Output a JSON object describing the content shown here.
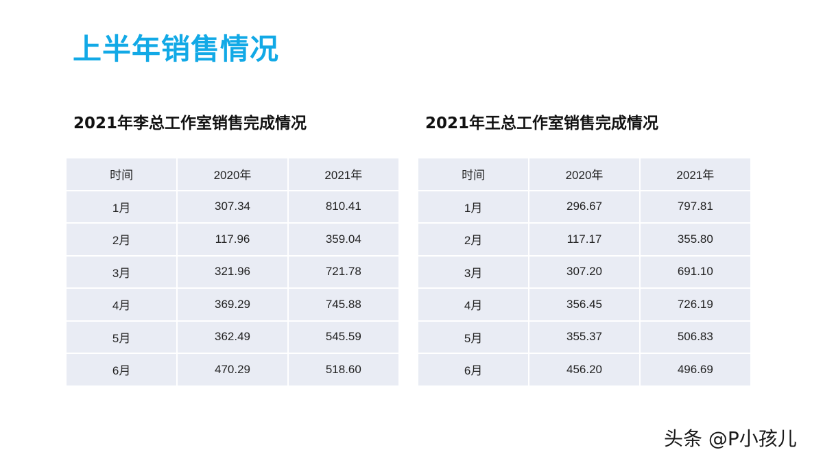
{
  "page": {
    "title": "上半年销售情况"
  },
  "tables": [
    {
      "title": "2021年李总工作室销售完成情况",
      "headers": [
        "时间",
        "2020年",
        "2021年"
      ],
      "rows": [
        [
          "1月",
          "307.34",
          "810.41"
        ],
        [
          "2月",
          "117.96",
          "359.04"
        ],
        [
          "3月",
          "321.96",
          "721.78"
        ],
        [
          "4月",
          "369.29",
          "745.88"
        ],
        [
          "5月",
          "362.49",
          "545.59"
        ],
        [
          "6月",
          "470.29",
          "518.60"
        ]
      ]
    },
    {
      "title": "2021年王总工作室销售完成情况",
      "headers": [
        "时间",
        "2020年",
        "2021年"
      ],
      "rows": [
        [
          "1月",
          "296.67",
          "797.81"
        ],
        [
          "2月",
          "117.17",
          "355.80"
        ],
        [
          "3月",
          "307.20",
          "691.10"
        ],
        [
          "4月",
          "356.45",
          "726.19"
        ],
        [
          "5月",
          "355.37",
          "506.83"
        ],
        [
          "6月",
          "456.20",
          "496.69"
        ]
      ]
    }
  ],
  "watermark": "头条 @P小孩儿",
  "colors": {
    "title_accent": "#12a9e6",
    "cell_background": "#e9ecf4",
    "text": "#222222"
  }
}
